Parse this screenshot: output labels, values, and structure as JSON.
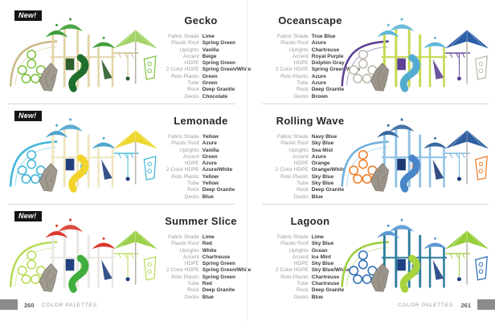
{
  "badge_label": "New!",
  "footer": {
    "left_page_number": "260",
    "right_page_number": "261",
    "section_label": "COLOR PALETTES"
  },
  "spec_labels": [
    "Fabric Shade",
    "Plastic Roof",
    "Uprights",
    "Accent",
    "HDPE",
    "2 Color HDPE",
    "Roto Plastic",
    "Tube",
    "Rock",
    "Decks"
  ],
  "panels": [
    {
      "id": "gecko",
      "title": "Gecko",
      "is_new": true,
      "values": [
        "Lime",
        "Spring Green",
        "Vanilla",
        "Beige",
        "Spring Green",
        "Spring Green/White",
        "Green",
        "Green",
        "Deep Granite",
        "Chocolate"
      ],
      "art": {
        "arc": "#cbb985",
        "cells": "#7fc242",
        "roof": "#3f9e3a",
        "post": "#e3d4a8",
        "slide": "#1e6f2d",
        "umbrella": "#a4d468",
        "rock": "#a19a8f",
        "accent": "#2e5f2c"
      }
    },
    {
      "id": "oceanscape",
      "title": "Oceanscape",
      "is_new": false,
      "values": [
        "True Blue",
        "Azure",
        "Chartreuse",
        "Royal Purple",
        "Dolphin Gray",
        "Spring Green/White",
        "Azure",
        "Azure",
        "Deep Granite",
        "Brown"
      ],
      "art": {
        "arc": "#5c4195",
        "cells": "#bdb8ac",
        "roof": "#5fb6d8",
        "post": "#c3d94f",
        "slide": "#54abd0",
        "umbrella": "#2b5ca6",
        "rock": "#9b948a",
        "accent": "#5c4195"
      }
    },
    {
      "id": "lemonade",
      "title": "Lemonade",
      "is_new": true,
      "values": [
        "Yellow",
        "Azure",
        "Vanilla",
        "Green",
        "Azure",
        "Azure/White",
        "Yellow",
        "Yellow",
        "Deep Granite",
        "Blue"
      ],
      "art": {
        "arc": "#3fb5d8",
        "cells": "#3fb5d8",
        "roof": "#4fa5cd",
        "post": "#efe5bf",
        "slide": "#f2d32b",
        "umbrella": "#eed72c",
        "rock": "#a19a8f",
        "accent": "#20407d"
      }
    },
    {
      "id": "rolling-wave",
      "title": "Rolling Wave",
      "is_new": false,
      "values": [
        "Navy Blue",
        "Sky Blue",
        "Sea Mist",
        "Azure",
        "Orange",
        "Orange/White",
        "Sky Blue",
        "Sky Blue",
        "Deep Granite",
        "Blue"
      ],
      "art": {
        "arc": "#6fb0de",
        "cells": "#ee7e2b",
        "roof": "#38699f",
        "post": "#8fc1e5",
        "slide": "#4886c7",
        "umbrella": "#2e5e9e",
        "rock": "#9b948a",
        "accent": "#1d3a73"
      }
    },
    {
      "id": "summer-slice",
      "title": "Summer Slice",
      "is_new": true,
      "values": [
        "Lime",
        "Red",
        "White",
        "Chartreuse",
        "Spring Green",
        "Spring Green/White",
        "Spring Green",
        "Red",
        "Deep Granite",
        "Blue"
      ],
      "art": {
        "arc": "#b8dc57",
        "cells": "#b8dc57",
        "roof": "#da382d",
        "post": "#e8e7e2",
        "slide": "#3fae3e",
        "umbrella": "#9cd04a",
        "rock": "#a19a8f",
        "accent": "#22407e"
      }
    },
    {
      "id": "lagoon",
      "title": "Lagoon",
      "is_new": false,
      "values": [
        "Lime",
        "Sky Blue",
        "Ocean",
        "Ice Mint",
        "Sky Blue",
        "Sky Blue/White",
        "Chartreuse",
        "Chartreuse",
        "Deep Granite",
        "Blue"
      ],
      "art": {
        "arc": "#9bcf3e",
        "cells": "#2f6fb6",
        "roof": "#5b9ad6",
        "post": "#2d7e9c",
        "slide": "#a7d33c",
        "umbrella": "#96ce3a",
        "rock": "#9b948a",
        "accent": "#204085"
      }
    }
  ]
}
